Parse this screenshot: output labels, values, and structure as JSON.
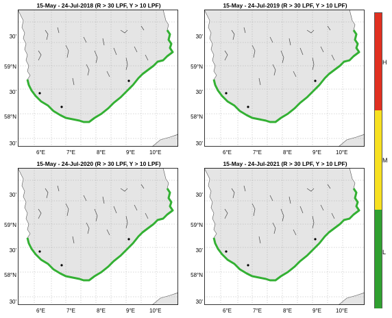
{
  "panels": [
    {
      "title": "15-May - 24-Jul-2018 (R > 30 LPF, Y > 10 LPF)"
    },
    {
      "title": "15-May - 24-Jul-2019 (R > 30 LPF, Y > 10 LPF)"
    },
    {
      "title": "15-May - 24-Jul-2020 (R > 30 LPF, Y > 10 LPF)"
    },
    {
      "title": "15-May - 24-Jul-2021 (R > 30 LPF, Y > 10 LPF)"
    }
  ],
  "lat_ticks": [
    "30'",
    "59°N",
    "30'",
    "58°N",
    "30'"
  ],
  "lon_ticks": [
    "6°E",
    "7°E",
    "8°E",
    "9°E",
    "10°E"
  ],
  "colorbar": {
    "labels": [
      "H",
      "M",
      "L"
    ],
    "colors": {
      "H": "#e03020",
      "M": "#f7e020",
      "L": "#30a030"
    }
  },
  "colors": {
    "land": "#e5e5e5",
    "coast_risk": "#33b033",
    "grid": "#9a9a9a"
  }
}
